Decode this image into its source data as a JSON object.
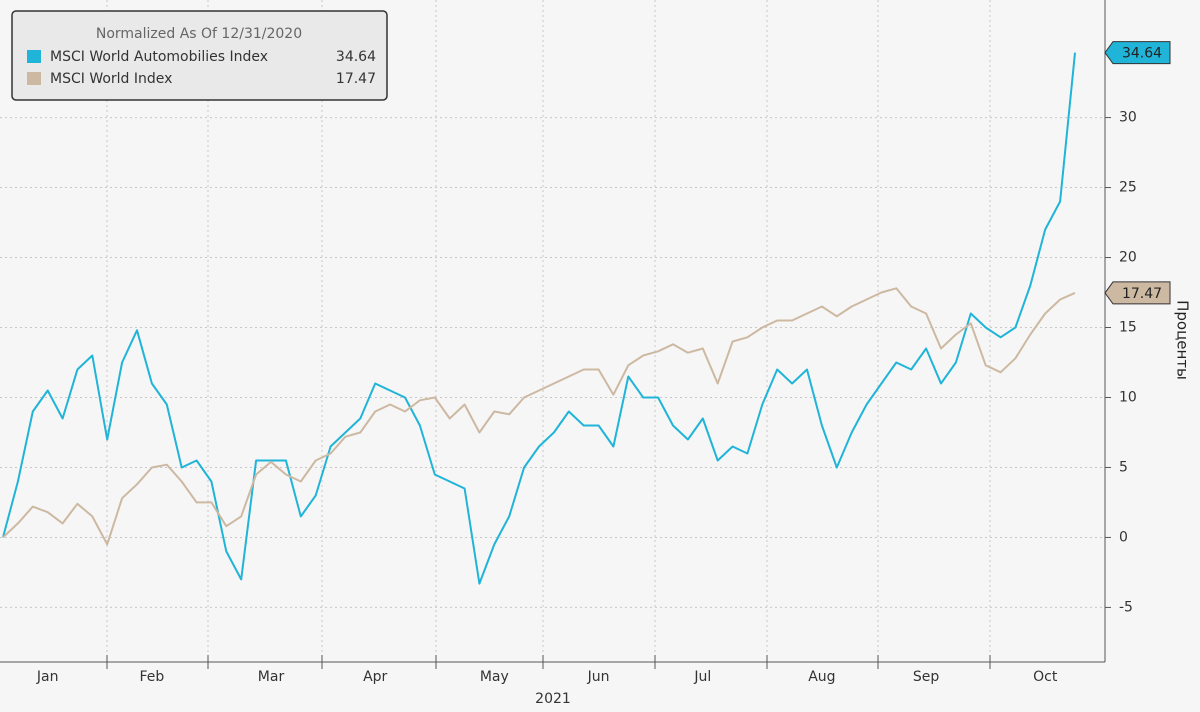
{
  "chart_data": {
    "type": "line",
    "legend_title": "Normalized As Of 12/31/2020",
    "xlabel": "2021",
    "ylabel": "Проценты",
    "categories": [
      null,
      null,
      null,
      "Jan",
      null,
      null,
      null,
      null,
      null,
      null,
      "Feb",
      null,
      null,
      null,
      null,
      null,
      null,
      null,
      "Mar",
      null,
      null,
      null,
      null,
      null,
      null,
      "Apr",
      null,
      null,
      null,
      null,
      null,
      null,
      null,
      "May",
      null,
      null,
      null,
      null,
      null,
      null,
      "Jun",
      null,
      null,
      null,
      null,
      null,
      null,
      "Jul",
      null,
      null,
      null,
      null,
      null,
      null,
      null,
      "Aug",
      null,
      null,
      null,
      null,
      null,
      null,
      "Sep",
      null,
      null,
      null,
      null,
      null,
      null,
      null,
      "Oct",
      null,
      null
    ],
    "series": [
      {
        "name": "MSCI World Automobilies Index",
        "color": "#1fb4d8",
        "values": [
          0,
          4,
          9,
          10.5,
          8.5,
          12,
          13,
          7,
          12.5,
          14.8,
          11,
          9.5,
          5,
          5.5,
          4,
          -1,
          -3,
          5.5,
          5.5,
          5.5,
          1.5,
          3,
          6.5,
          7.5,
          8.5,
          11,
          10.5,
          10,
          8,
          4.5,
          4,
          3.5,
          -3.3,
          -0.5,
          1.5,
          5,
          6.5,
          7.5,
          9,
          8,
          8,
          6.5,
          11.5,
          10,
          10,
          8,
          7,
          8.5,
          5.5,
          6.5,
          6,
          9.5,
          12,
          11,
          12,
          8,
          5,
          7.5,
          9.5,
          11,
          12.5,
          12,
          13.5,
          11,
          12.5,
          16,
          15,
          14.3,
          15,
          18,
          22,
          24,
          34.64
        ]
      },
      {
        "name": "MSCI World Index",
        "color": "#cdb9a2",
        "values": [
          0,
          1,
          2.2,
          1.8,
          1,
          2.4,
          1.5,
          -0.5,
          2.8,
          3.8,
          5,
          5.2,
          4,
          2.5,
          2.5,
          0.8,
          1.5,
          4.5,
          5.4,
          4.5,
          4,
          5.5,
          6,
          7.2,
          7.5,
          9,
          9.5,
          9,
          9.8,
          10,
          8.5,
          9.5,
          7.5,
          9,
          8.8,
          10,
          10.5,
          11,
          11.5,
          12,
          12,
          10.2,
          12.3,
          13,
          13.3,
          13.8,
          13.2,
          13.5,
          11,
          14,
          14.3,
          15,
          15.5,
          15.5,
          16,
          16.5,
          15.8,
          16.5,
          17,
          17.5,
          17.8,
          16.5,
          16,
          13.5,
          14.5,
          15.3,
          12.3,
          11.8,
          12.8,
          14.5,
          16,
          17,
          17.47
        ]
      }
    ],
    "ylim": [
      -8.9,
      38.4
    ],
    "yticks": [
      -5,
      0,
      5,
      10,
      15,
      20,
      25,
      30
    ],
    "grid": true
  }
}
